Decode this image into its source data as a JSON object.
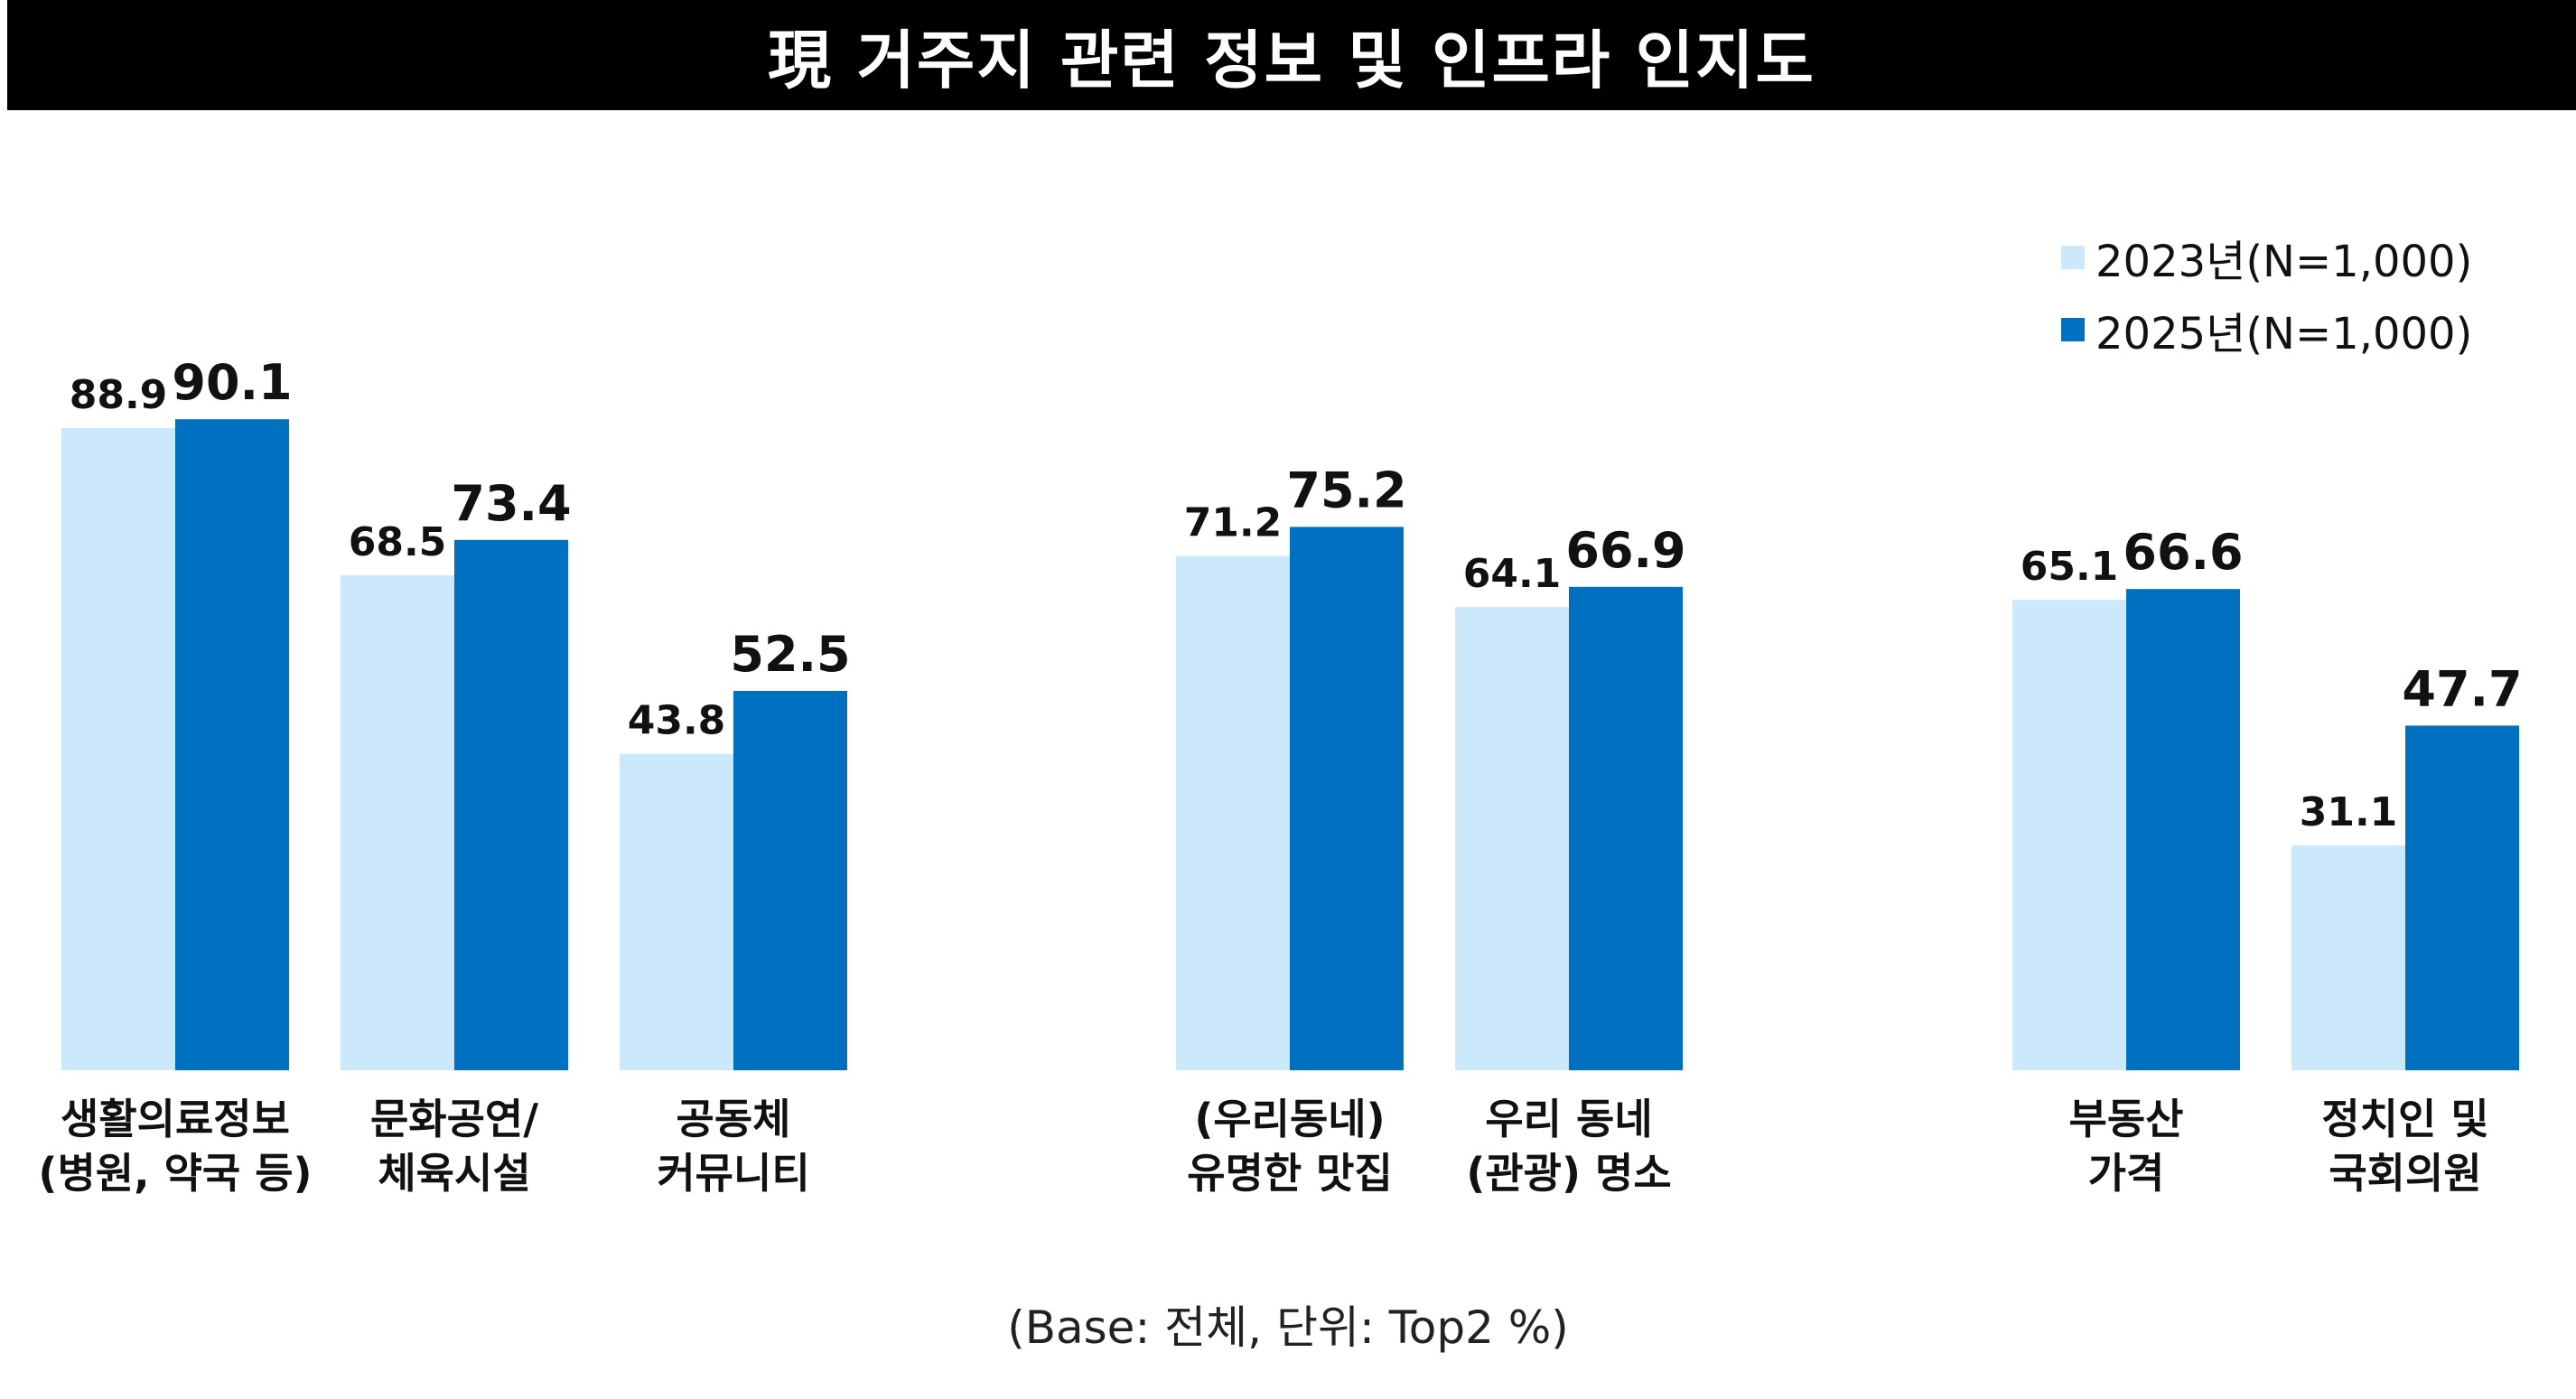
{
  "title": "現 거주지 관련 정보 및 인프라 인지도",
  "footnote": "(Base: 전체, 단위: Top2 %)",
  "colors": {
    "series_2023": "#cce8fb",
    "series_2025": "#0070c0",
    "title_bg": "#000000"
  },
  "chart_data": {
    "type": "bar",
    "title": "現 거주지 관련 정보 및 인프라 인지도",
    "categories": [
      [
        "생활의료정보",
        "(병원, 약국 등)"
      ],
      [
        "문화공연/",
        "체육시설"
      ],
      [
        "공동체",
        "커뮤니티"
      ],
      [
        "(우리동네)",
        "유명한 맛집"
      ],
      [
        "우리 동네",
        "(관광) 명소"
      ],
      [
        "부동산",
        "가격"
      ],
      [
        "정치인 및",
        "국회의원"
      ]
    ],
    "series": [
      {
        "name": "2023년(N=1,000)",
        "values": [
          88.9,
          68.5,
          43.8,
          71.2,
          64.1,
          65.1,
          31.1
        ]
      },
      {
        "name": "2025년(N=1,000)",
        "values": [
          90.1,
          73.4,
          52.5,
          75.2,
          66.9,
          66.6,
          47.7
        ]
      }
    ],
    "ylim": [
      0,
      100
    ],
    "grid": false,
    "legend": "top-right",
    "unit": "Top2 %"
  }
}
